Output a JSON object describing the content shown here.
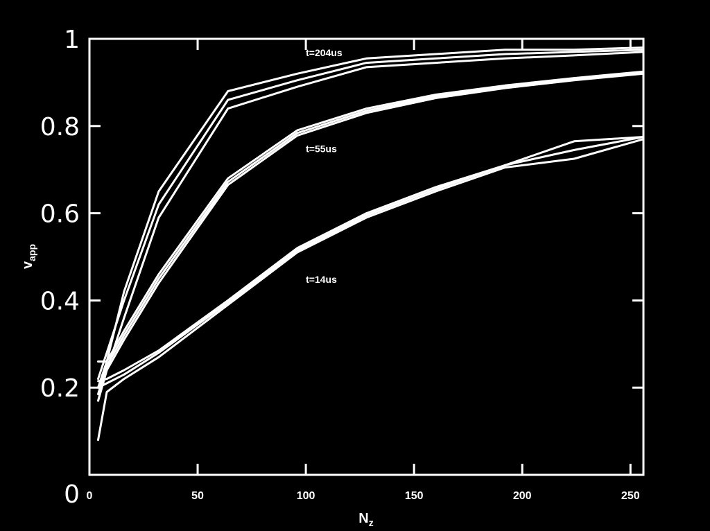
{
  "chart_data": {
    "type": "line",
    "xlabel": "N",
    "xlabel_sub": "z",
    "ylabel": "v",
    "ylabel_sub": "app",
    "xlim": [
      0,
      256
    ],
    "ylim": [
      0,
      1
    ],
    "x_ticks": [
      {
        "value": 0,
        "label": "0"
      },
      {
        "value": 50,
        "label": "50"
      },
      {
        "value": 100,
        "label": "100"
      },
      {
        "value": 150,
        "label": "150"
      },
      {
        "value": 200,
        "label": "200"
      },
      {
        "value": 250,
        "label": "250"
      }
    ],
    "y_ticks": [
      {
        "value": 0,
        "label": "0"
      },
      {
        "value": 0.2,
        "label": "0.2"
      },
      {
        "value": 0.4,
        "label": "0.4"
      },
      {
        "value": 0.6,
        "label": "0.6"
      },
      {
        "value": 0.8,
        "label": "0.8"
      },
      {
        "value": 1,
        "label": "1"
      }
    ],
    "grid": false,
    "line_color": "#ffffff",
    "background": "#000000",
    "annotations": [
      {
        "text": "t=204us",
        "x": 100,
        "y": 0.96
      },
      {
        "text": "t=55us",
        "x": 100,
        "y": 0.74
      },
      {
        "text": "t=14us",
        "x": 100,
        "y": 0.44
      }
    ],
    "groups": [
      {
        "label": "t=204us",
        "series": [
          {
            "x": [
              4,
              8,
              16,
              32,
              64,
              96,
              128,
              160,
              192,
              224,
              256
            ],
            "y": [
              0.26,
              0.26,
              0.42,
              0.65,
              0.88,
              0.92,
              0.955,
              0.965,
              0.975,
              0.975,
              0.98
            ]
          },
          {
            "x": [
              4,
              8,
              16,
              32,
              64,
              96,
              128,
              160,
              192,
              224,
              256
            ],
            "y": [
              0.22,
              0.28,
              0.4,
              0.62,
              0.86,
              0.905,
              0.945,
              0.955,
              0.965,
              0.97,
              0.975
            ]
          },
          {
            "x": [
              4,
              8,
              16,
              32,
              64,
              96,
              128,
              160,
              192,
              224,
              256
            ],
            "y": [
              0.17,
              0.24,
              0.36,
              0.59,
              0.84,
              0.89,
              0.935,
              0.945,
              0.955,
              0.962,
              0.97
            ]
          }
        ]
      },
      {
        "label": "t=55us",
        "series": [
          {
            "x": [
              4,
              8,
              16,
              32,
              64,
              96,
              128,
              160,
              192,
              224,
              256
            ],
            "y": [
              0.2,
              0.26,
              0.33,
              0.46,
              0.68,
              0.79,
              0.84,
              0.872,
              0.893,
              0.91,
              0.925
            ]
          },
          {
            "x": [
              4,
              8,
              16,
              32,
              64,
              96,
              128,
              160,
              192,
              224,
              256
            ],
            "y": [
              0.185,
              0.25,
              0.32,
              0.45,
              0.672,
              0.784,
              0.835,
              0.868,
              0.89,
              0.908,
              0.922
            ]
          },
          {
            "x": [
              4,
              8,
              16,
              32,
              64,
              96,
              128,
              160,
              192,
              224,
              256
            ],
            "y": [
              0.17,
              0.24,
              0.31,
              0.44,
              0.665,
              0.778,
              0.83,
              0.864,
              0.887,
              0.905,
              0.92
            ]
          }
        ]
      },
      {
        "label": "t=14us",
        "series": [
          {
            "x": [
              4,
              8,
              16,
              32,
              64,
              96,
              128,
              160,
              192,
              224,
              256
            ],
            "y": [
              0.215,
              0.22,
              0.24,
              0.285,
              0.4,
              0.52,
              0.6,
              0.66,
              0.71,
              0.765,
              0.775
            ]
          },
          {
            "x": [
              4,
              8,
              16,
              32,
              64,
              96,
              128,
              160,
              192,
              224,
              256
            ],
            "y": [
              0.2,
              0.21,
              0.23,
              0.28,
              0.395,
              0.515,
              0.595,
              0.655,
              0.71,
              0.745,
              0.775
            ]
          },
          {
            "x": [
              4,
              8,
              16,
              32,
              64,
              96,
              128,
              160,
              192,
              224,
              256
            ],
            "y": [
              0.08,
              0.19,
              0.22,
              0.27,
              0.39,
              0.51,
              0.59,
              0.65,
              0.705,
              0.725,
              0.77
            ]
          }
        ]
      }
    ]
  }
}
